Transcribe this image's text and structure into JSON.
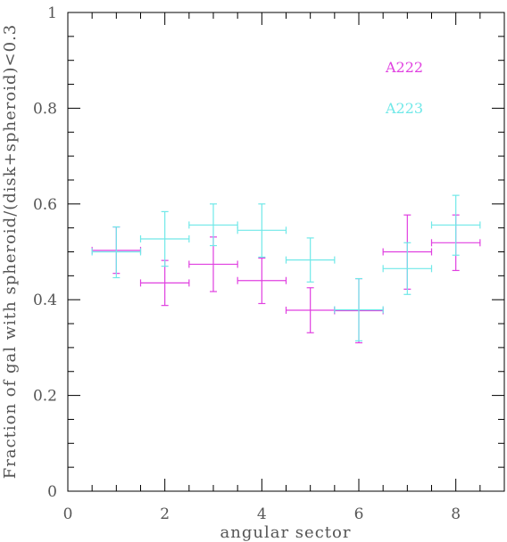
{
  "chart_data": {
    "type": "scatter",
    "title": "",
    "xlabel": "angular sector",
    "ylabel": "Fraction of gal with spheroid/(disk+spheroid)<0.3",
    "xlim": [
      0,
      9
    ],
    "ylim": [
      0,
      1
    ],
    "x_ticks": [
      "0",
      "2",
      "4",
      "6",
      "8"
    ],
    "y_ticks": [
      "0",
      "0.2",
      "0.4",
      "0.6",
      "0.8",
      "1"
    ],
    "x_tick_values": [
      0,
      2,
      4,
      6,
      8
    ],
    "y_tick_values": [
      0,
      0.2,
      0.4,
      0.6,
      0.8,
      1.0
    ],
    "x_minor_step": 0.5,
    "y_minor_step": 0.05,
    "grid": false,
    "legend_position": "top-right",
    "x_error": 0.5,
    "series": [
      {
        "name": "A222",
        "color": "#e040e0",
        "x": [
          1,
          2,
          3,
          4,
          5,
          6,
          7,
          8
        ],
        "y": [
          0.503,
          0.435,
          0.474,
          0.44,
          0.378,
          0.377,
          0.5,
          0.519
        ],
        "y_err_low": [
          0.048,
          0.047,
          0.057,
          0.048,
          0.047,
          0.067,
          0.078,
          0.058
        ],
        "y_err_high": [
          0.049,
          0.047,
          0.057,
          0.047,
          0.047,
          0.067,
          0.077,
          0.058
        ]
      },
      {
        "name": "A223",
        "color": "#70e8e8",
        "x": [
          1,
          2,
          3,
          4,
          5,
          6,
          7,
          8
        ],
        "y": [
          0.5,
          0.527,
          0.556,
          0.545,
          0.483,
          0.379,
          0.465,
          0.556
        ],
        "y_err_low": [
          0.054,
          0.057,
          0.043,
          0.056,
          0.046,
          0.065,
          0.054,
          0.063
        ],
        "y_err_high": [
          0.052,
          0.057,
          0.044,
          0.055,
          0.046,
          0.065,
          0.054,
          0.062
        ]
      }
    ]
  }
}
